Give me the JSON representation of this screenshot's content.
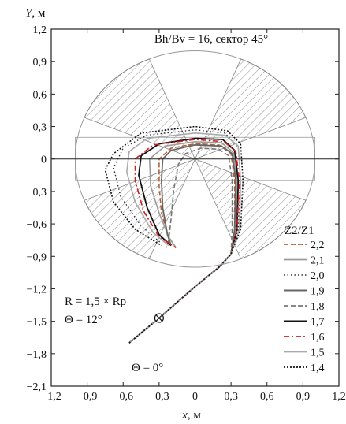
{
  "chart_data": {
    "type": "line",
    "title": "Bh/Bv = 16, сектор 45°",
    "xlabel_var": "x",
    "xlabel_unit": ", м",
    "ylabel_var": "Y",
    "ylabel_unit": ", м",
    "xlim": [
      -1.2,
      1.2
    ],
    "ylim": [
      -2.1,
      1.2
    ],
    "xticks": [
      "−1,2",
      "−0,9",
      "−0,6",
      "−0,3",
      "0",
      "0,3",
      "0,6",
      "0,9",
      "1,2"
    ],
    "yticks": [
      "1,2",
      "0,9",
      "0,6",
      "0,3",
      "0",
      "−0,3",
      "−0,6",
      "−0,9",
      "−1,2",
      "−1,5",
      "−1,8",
      "−2,1"
    ],
    "xtick_values": [
      -1.2,
      -0.9,
      -0.6,
      -0.3,
      0,
      0.3,
      0.6,
      0.9,
      1.2
    ],
    "ytick_values": [
      1.2,
      0.9,
      0.6,
      0.3,
      0,
      -0.3,
      -0.6,
      -0.9,
      -1.2,
      -1.5,
      -1.8,
      -2.1
    ],
    "circle": {
      "center": [
        0,
        0
      ],
      "radius": 1.0
    },
    "hatched_sectors_deg": [
      [
        22.5,
        67.5
      ],
      [
        112.5,
        157.5
      ],
      [
        202.5,
        247.5
      ],
      [
        292.5,
        337.5
      ]
    ],
    "inner_stripe": {
      "y_top": 0.2,
      "y_bottom": -0.2
    },
    "annotations": {
      "r_label": "R = 1,5 × Rp",
      "theta_label": "Θ = 12°",
      "theta0_label": "Θ = 0°"
    },
    "start_marker": [
      -0.3,
      -1.47
    ],
    "legend_title": "Z2/Z1",
    "legend_position": "bottom-right",
    "common_path": [
      [
        -0.55,
        -1.7
      ],
      [
        -0.3,
        -1.47
      ],
      [
        0.0,
        -1.18
      ],
      [
        0.2,
        -1.0
      ],
      [
        0.3,
        -0.88
      ]
    ],
    "series": [
      {
        "name": "2,2",
        "color": "#b0613a",
        "dash": "6,3",
        "width": 1.6,
        "points": [
          [
            0.3,
            -0.88
          ],
          [
            0.33,
            -0.65
          ],
          [
            0.33,
            -0.2
          ],
          [
            0.3,
            0.05
          ],
          [
            0.2,
            0.13
          ],
          [
            0.0,
            0.14
          ],
          [
            -0.2,
            0.1
          ],
          [
            -0.3,
            0.0
          ],
          [
            -0.3,
            -0.25
          ],
          [
            -0.28,
            -0.5
          ],
          [
            -0.22,
            -0.72
          ],
          [
            -0.16,
            -0.82
          ]
        ]
      },
      {
        "name": "2,1",
        "color": "#9b9b9b",
        "dash": "",
        "width": 1.6,
        "points": [
          [
            0.3,
            -0.88
          ],
          [
            0.34,
            -0.65
          ],
          [
            0.35,
            -0.2
          ],
          [
            0.32,
            0.06
          ],
          [
            0.22,
            0.15
          ],
          [
            0.0,
            0.16
          ],
          [
            -0.25,
            0.12
          ],
          [
            -0.38,
            0.0
          ],
          [
            -0.37,
            -0.25
          ],
          [
            -0.3,
            -0.5
          ],
          [
            -0.22,
            -0.72
          ],
          [
            -0.16,
            -0.82
          ]
        ]
      },
      {
        "name": "2,0",
        "color": "#333333",
        "dash": "1.5,3",
        "width": 1.4,
        "points": [
          [
            0.3,
            -0.88
          ],
          [
            0.36,
            -0.65
          ],
          [
            0.38,
            -0.2
          ],
          [
            0.36,
            0.1
          ],
          [
            0.25,
            0.24
          ],
          [
            0.0,
            0.27
          ],
          [
            -0.4,
            0.22
          ],
          [
            -0.6,
            0.1
          ],
          [
            -0.68,
            -0.08
          ],
          [
            -0.62,
            -0.35
          ],
          [
            -0.45,
            -0.62
          ],
          [
            -0.28,
            -0.78
          ]
        ]
      },
      {
        "name": "1,9",
        "color": "#666666",
        "dash": "",
        "width": 1.8,
        "points": [
          [
            0.3,
            -0.88
          ],
          [
            0.33,
            -0.65
          ],
          [
            0.34,
            -0.2
          ],
          [
            0.31,
            0.05
          ],
          [
            0.22,
            0.12
          ],
          [
            0.0,
            0.13
          ],
          [
            -0.2,
            0.08
          ],
          [
            -0.27,
            0.0
          ],
          [
            -0.28,
            -0.2
          ],
          [
            -0.27,
            -0.45
          ],
          [
            -0.23,
            -0.7
          ],
          [
            -0.2,
            -0.8
          ]
        ]
      },
      {
        "name": "1,8",
        "color": "#777777",
        "dash": "6,3",
        "width": 1.6,
        "points": [
          [
            0.3,
            -0.88
          ],
          [
            0.31,
            -0.65
          ],
          [
            0.31,
            -0.2
          ],
          [
            0.28,
            0.03
          ],
          [
            0.2,
            0.09
          ],
          [
            0.05,
            0.1
          ],
          [
            -0.08,
            0.05
          ],
          [
            -0.14,
            -0.05
          ],
          [
            -0.18,
            -0.3
          ],
          [
            -0.2,
            -0.55
          ],
          [
            -0.22,
            -0.75
          ],
          [
            -0.24,
            -0.82
          ]
        ]
      },
      {
        "name": "1,7",
        "color": "#111111",
        "dash": "",
        "width": 1.8,
        "points": [
          [
            0.3,
            -0.88
          ],
          [
            0.35,
            -0.65
          ],
          [
            0.36,
            -0.2
          ],
          [
            0.33,
            0.08
          ],
          [
            0.23,
            0.18
          ],
          [
            0.0,
            0.19
          ],
          [
            -0.3,
            0.14
          ],
          [
            -0.45,
            0.03
          ],
          [
            -0.47,
            -0.15
          ],
          [
            -0.4,
            -0.45
          ],
          [
            -0.3,
            -0.7
          ],
          [
            -0.2,
            -0.8
          ]
        ]
      },
      {
        "name": "1,6",
        "color": "#d11f1f",
        "dash": "7,3,2,3",
        "width": 1.6,
        "points": [
          [
            0.3,
            -0.88
          ],
          [
            0.35,
            -0.65
          ],
          [
            0.37,
            -0.2
          ],
          [
            0.34,
            0.07
          ],
          [
            0.24,
            0.16
          ],
          [
            0.0,
            0.18
          ],
          [
            -0.35,
            0.13
          ],
          [
            -0.5,
            0.0
          ],
          [
            -0.5,
            -0.2
          ],
          [
            -0.43,
            -0.48
          ],
          [
            -0.3,
            -0.72
          ],
          [
            -0.16,
            -0.82
          ]
        ]
      },
      {
        "name": "1,5",
        "color": "#aaaaaa",
        "dash": "",
        "width": 1.6,
        "points": [
          [
            0.3,
            -0.88
          ],
          [
            0.37,
            -0.65
          ],
          [
            0.38,
            -0.2
          ],
          [
            0.36,
            0.12
          ],
          [
            0.25,
            0.22
          ],
          [
            0.0,
            0.24
          ],
          [
            -0.4,
            0.19
          ],
          [
            -0.55,
            0.07
          ],
          [
            -0.57,
            -0.12
          ],
          [
            -0.5,
            -0.4
          ],
          [
            -0.35,
            -0.68
          ],
          [
            -0.22,
            -0.8
          ]
        ]
      },
      {
        "name": "1,4",
        "color": "#111111",
        "dash": "2,2",
        "width": 1.6,
        "points": [
          [
            0.3,
            -0.88
          ],
          [
            0.38,
            -0.65
          ],
          [
            0.4,
            -0.2
          ],
          [
            0.38,
            0.14
          ],
          [
            0.27,
            0.26
          ],
          [
            0.0,
            0.3
          ],
          [
            -0.45,
            0.24
          ],
          [
            -0.68,
            0.05
          ],
          [
            -0.75,
            -0.1
          ],
          [
            -0.68,
            -0.4
          ],
          [
            -0.5,
            -0.65
          ],
          [
            -0.28,
            -0.8
          ]
        ]
      }
    ]
  }
}
